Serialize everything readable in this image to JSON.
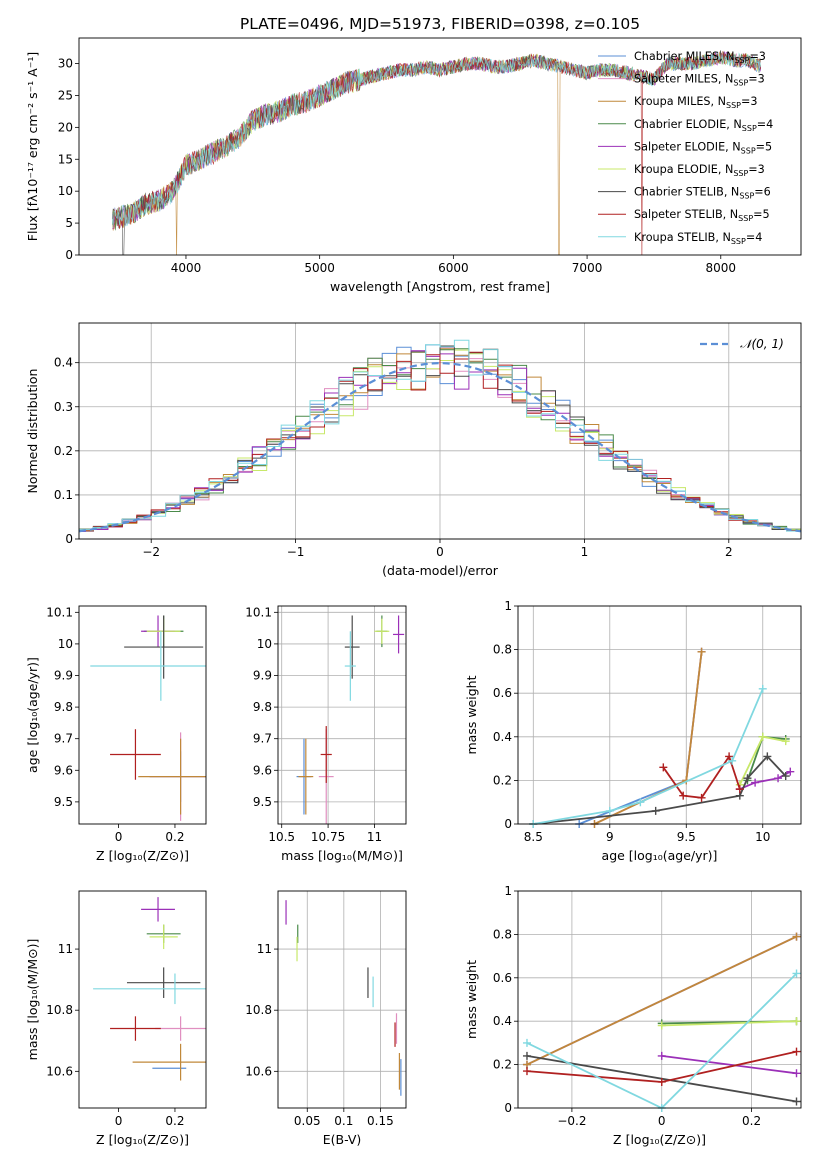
{
  "figure_title": "PLATE=0496, MJD=51973, FIBERID=0398, z=0.105",
  "colors": {
    "Chabrier MILES": "#5b8fd6",
    "Salpeter MILES": "#e08fc0",
    "Kroupa MILES": "#c0883a",
    "Chabrier ELODIE": "#4a8a4a",
    "Salpeter ELODIE": "#9b30b8",
    "Kroupa ELODIE": "#c8e86a",
    "Chabrier STELIB": "#4a4a4a",
    "Salpeter STELIB": "#b02020",
    "Kroupa STELIB": "#80d8e0",
    "normal": "#5b8fd6",
    "orange": "#d97a30"
  },
  "legend_entries": [
    {
      "name": "Chabrier MILES",
      "suffix": "3"
    },
    {
      "name": "Salpeter MILES",
      "suffix": "3"
    },
    {
      "name": "Kroupa MILES",
      "suffix": "3"
    },
    {
      "name": "Chabrier ELODIE",
      "suffix": "4"
    },
    {
      "name": "Salpeter ELODIE",
      "suffix": "5"
    },
    {
      "name": "Kroupa ELODIE",
      "suffix": "3"
    },
    {
      "name": "Chabrier STELIB",
      "suffix": "6"
    },
    {
      "name": "Salpeter STELIB",
      "suffix": "5"
    },
    {
      "name": "Kroupa STELIB",
      "suffix": "4"
    }
  ],
  "chart_data": [
    {
      "type": "line",
      "id": "spectrum",
      "xlabel": "wavelength [Angstrom, rest frame]",
      "ylabel": "Flux [fλ10⁻¹⁷ erg cm⁻² s⁻¹ A⁻¹]",
      "xlim": [
        3200,
        8600
      ],
      "ylim": [
        0,
        34
      ],
      "xticks": [
        4000,
        5000,
        6000,
        7000,
        8000
      ],
      "yticks": [
        0,
        5,
        10,
        15,
        20,
        25,
        30
      ],
      "continuum": [
        [
          3450,
          5.5
        ],
        [
          3600,
          6.5
        ],
        [
          3700,
          8
        ],
        [
          3800,
          8.5
        ],
        [
          3900,
          10
        ],
        [
          4000,
          14
        ],
        [
          4100,
          15
        ],
        [
          4200,
          16
        ],
        [
          4300,
          17
        ],
        [
          4400,
          18.5
        ],
        [
          4500,
          21
        ],
        [
          4600,
          22
        ],
        [
          4700,
          22.5
        ],
        [
          4800,
          23.5
        ],
        [
          4900,
          24
        ],
        [
          5000,
          25
        ],
        [
          5100,
          26
        ],
        [
          5200,
          27
        ],
        [
          5300,
          27.5
        ],
        [
          5400,
          28
        ],
        [
          5500,
          28.5
        ],
        [
          5600,
          29
        ],
        [
          5700,
          29
        ],
        [
          5800,
          29.5
        ],
        [
          5900,
          29
        ],
        [
          6000,
          29.5
        ],
        [
          6100,
          30
        ],
        [
          6200,
          30
        ],
        [
          6300,
          29.5
        ],
        [
          6400,
          29.5
        ],
        [
          6500,
          30
        ],
        [
          6600,
          30.5
        ],
        [
          6700,
          30
        ],
        [
          6800,
          29.5
        ],
        [
          6900,
          29
        ],
        [
          7000,
          28.5
        ],
        [
          7100,
          29
        ],
        [
          7200,
          29
        ],
        [
          7300,
          28.5
        ],
        [
          7400,
          28
        ],
        [
          7500,
          27.5
        ],
        [
          7600,
          30
        ],
        [
          7700,
          30
        ],
        [
          7800,
          30
        ],
        [
          7900,
          30.5
        ],
        [
          8000,
          31
        ],
        [
          8100,
          30.5
        ],
        [
          8200,
          30.5
        ],
        [
          8300,
          29.5
        ]
      ],
      "dips": [
        {
          "x": 3530,
          "series": "Chabrier STELIB"
        },
        {
          "x": 3930,
          "series": "Kroupa MILES"
        },
        {
          "x": 6790,
          "series": "Kroupa MILES"
        },
        {
          "x": 7410,
          "series": "Salpeter STELIB"
        }
      ]
    },
    {
      "type": "histogram",
      "id": "residuals",
      "xlabel": "(data-model)/error",
      "ylabel": "Normed distribution",
      "xlim": [
        -2.5,
        2.5
      ],
      "ylim": [
        0,
        0.49
      ],
      "xticks": [
        -2,
        -1,
        0,
        1,
        2
      ],
      "yticks": [
        0.0,
        0.1,
        0.2,
        0.3,
        0.4
      ],
      "bin_width": 0.1,
      "legend": "𝒩(0, 1)",
      "normal": {
        "mean": 0,
        "sigma": 1
      }
    },
    {
      "type": "errorbar",
      "id": "age_vs_Z",
      "xlabel": "Z [log₁₀(Z/Z⊙)]",
      "ylabel": "age  [log₁₀(age/yr)]",
      "xlim": [
        -0.14,
        0.31
      ],
      "ylim": [
        9.43,
        10.12
      ],
      "xticks": [
        0.0,
        0.2
      ],
      "yticks": [
        9.5,
        9.6,
        9.7,
        9.8,
        9.9,
        10.0,
        10.1
      ],
      "points": [
        {
          "series": "Chabrier MILES",
          "x": 0.22,
          "y": 9.58,
          "xerr": 0.11,
          "yerr": 0.08
        },
        {
          "series": "Salpeter MILES",
          "x": 0.22,
          "y": 9.58,
          "xerr": 0.11,
          "yerr": 0.14
        },
        {
          "series": "Kroupa MILES",
          "x": 0.22,
          "y": 9.58,
          "xerr": 0.15,
          "yerr": 0.12
        },
        {
          "series": "Chabrier ELODIE",
          "x": 0.16,
          "y": 10.04,
          "xerr": 0.07,
          "yerr": 0.05
        },
        {
          "series": "Salpeter ELODIE",
          "x": 0.14,
          "y": 10.04,
          "xerr": 0.06,
          "yerr": 0.05
        },
        {
          "series": "Kroupa ELODIE",
          "x": 0.16,
          "y": 10.04,
          "xerr": 0.06,
          "yerr": 0.04
        },
        {
          "series": "Chabrier STELIB",
          "x": 0.16,
          "y": 9.99,
          "xerr": 0.14,
          "yerr": 0.1
        },
        {
          "series": "Salpeter STELIB",
          "x": 0.06,
          "y": 9.65,
          "xerr": 0.09,
          "yerr": 0.08
        },
        {
          "series": "Kroupa STELIB",
          "x": 0.15,
          "y": 9.93,
          "xerr": 0.25,
          "yerr": 0.11
        }
      ]
    },
    {
      "type": "errorbar",
      "id": "age_vs_mass",
      "xlabel": "mass [log₁₀(M/M⊙)]",
      "ylabel": "",
      "xlim": [
        10.48,
        11.17
      ],
      "ylim": [
        9.43,
        10.12
      ],
      "xticks": [
        10.5,
        10.75,
        11.0
      ],
      "yticks": [
        9.5,
        9.6,
        9.7,
        9.8,
        9.9,
        10.0,
        10.1
      ],
      "points": [
        {
          "series": "Chabrier MILES",
          "x": 10.62,
          "y": 9.58,
          "xerr": 0.04,
          "yerr": 0.12
        },
        {
          "series": "Salpeter MILES",
          "x": 10.74,
          "y": 9.58,
          "xerr": 0.04,
          "yerr": 0.15
        },
        {
          "series": "Kroupa MILES",
          "x": 10.63,
          "y": 9.58,
          "xerr": 0.04,
          "yerr": 0.12
        },
        {
          "series": "Chabrier ELODIE",
          "x": 11.04,
          "y": 10.04,
          "xerr": 0.03,
          "yerr": 0.05
        },
        {
          "series": "Salpeter ELODIE",
          "x": 11.13,
          "y": 10.03,
          "xerr": 0.03,
          "yerr": 0.06
        },
        {
          "series": "Kroupa ELODIE",
          "x": 11.04,
          "y": 10.04,
          "xerr": 0.04,
          "yerr": 0.04
        },
        {
          "series": "Chabrier STELIB",
          "x": 10.88,
          "y": 9.99,
          "xerr": 0.04,
          "yerr": 0.1
        },
        {
          "series": "Salpeter STELIB",
          "x": 10.74,
          "y": 9.65,
          "xerr": 0.03,
          "yerr": 0.09
        },
        {
          "series": "Kroupa STELIB",
          "x": 10.87,
          "y": 9.93,
          "xerr": 0.03,
          "yerr": 0.11
        }
      ]
    },
    {
      "type": "line",
      "id": "weight_vs_age",
      "xlabel": "age  [log₁₀(age/yr)]",
      "ylabel": "mass weight",
      "xlim": [
        8.4,
        10.25
      ],
      "ylim": [
        0,
        1.0
      ],
      "xticks": [
        8.5,
        9.0,
        9.5,
        10.0
      ],
      "yticks": [
        0.0,
        0.2,
        0.4,
        0.6,
        0.8,
        1.0
      ],
      "series": [
        {
          "name": "Chabrier MILES",
          "points": [
            [
              8.8,
              0.0
            ],
            [
              9.5,
              0.2
            ],
            [
              9.6,
              0.79
            ]
          ]
        },
        {
          "name": "Salpeter MILES",
          "points": [
            [
              8.9,
              0.0
            ],
            [
              9.5,
              0.2
            ],
            [
              9.6,
              0.79
            ]
          ]
        },
        {
          "name": "Kroupa MILES",
          "points": [
            [
              8.9,
              0.0
            ],
            [
              9.5,
              0.2
            ],
            [
              9.6,
              0.79
            ]
          ]
        },
        {
          "name": "Chabrier ELODIE",
          "points": [
            [
              9.9,
              0.2
            ],
            [
              10.0,
              0.4
            ],
            [
              10.15,
              0.39
            ]
          ]
        },
        {
          "name": "Salpeter ELODIE",
          "points": [
            [
              9.85,
              0.16
            ],
            [
              9.95,
              0.19
            ],
            [
              10.1,
              0.21
            ],
            [
              10.18,
              0.24
            ]
          ]
        },
        {
          "name": "Kroupa ELODIE",
          "points": [
            [
              9.85,
              0.18
            ],
            [
              10.0,
              0.4
            ],
            [
              10.15,
              0.38
            ]
          ]
        },
        {
          "name": "Chabrier STELIB",
          "points": [
            [
              8.5,
              0.0
            ],
            [
              9.3,
              0.06
            ],
            [
              9.85,
              0.13
            ],
            [
              9.9,
              0.21
            ],
            [
              10.03,
              0.31
            ],
            [
              10.15,
              0.22
            ]
          ]
        },
        {
          "name": "Salpeter STELIB",
          "points": [
            [
              9.35,
              0.26
            ],
            [
              9.48,
              0.13
            ],
            [
              9.6,
              0.12
            ],
            [
              9.78,
              0.31
            ],
            [
              9.85,
              0.16
            ]
          ]
        },
        {
          "name": "Kroupa STELIB",
          "points": [
            [
              8.5,
              0.0
            ],
            [
              9.0,
              0.06
            ],
            [
              9.2,
              0.1
            ],
            [
              9.8,
              0.29
            ],
            [
              10.0,
              0.62
            ]
          ]
        }
      ]
    },
    {
      "type": "errorbar",
      "id": "mass_vs_Z",
      "xlabel": "Z [log₁₀(Z/Z⊙)]",
      "ylabel": "mass [log₁₀(M/M⊙)]",
      "xlim": [
        -0.14,
        0.31
      ],
      "ylim": [
        10.48,
        11.19
      ],
      "xticks": [
        0.0,
        0.2
      ],
      "yticks": [
        10.6,
        10.8,
        11.0
      ],
      "points": [
        {
          "series": "Chabrier MILES",
          "x": 0.18,
          "y": 10.61,
          "xerr": 0.06,
          "yerr": 0.0
        },
        {
          "series": "Salpeter MILES",
          "x": 0.22,
          "y": 10.74,
          "xerr": 0.09,
          "yerr": 0.04
        },
        {
          "series": "Kroupa MILES",
          "x": 0.22,
          "y": 10.63,
          "xerr": 0.17,
          "yerr": 0.06
        },
        {
          "series": "Chabrier ELODIE",
          "x": 0.16,
          "y": 11.05,
          "xerr": 0.06,
          "yerr": 0.03
        },
        {
          "series": "Salpeter ELODIE",
          "x": 0.14,
          "y": 11.13,
          "xerr": 0.06,
          "yerr": 0.04
        },
        {
          "series": "Kroupa ELODIE",
          "x": 0.16,
          "y": 11.04,
          "xerr": 0.05,
          "yerr": 0.04
        },
        {
          "series": "Chabrier STELIB",
          "x": 0.16,
          "y": 10.89,
          "xerr": 0.13,
          "yerr": 0.05
        },
        {
          "series": "Salpeter STELIB",
          "x": 0.06,
          "y": 10.74,
          "xerr": 0.09,
          "yerr": 0.04
        },
        {
          "series": "Kroupa STELIB",
          "x": 0.2,
          "y": 10.87,
          "xerr": 0.29,
          "yerr": 0.05
        }
      ]
    },
    {
      "type": "errorbar",
      "id": "mass_vs_ebv",
      "xlabel": "E(B-V)",
      "ylabel": "",
      "xlim": [
        0.01,
        0.185
      ],
      "ylim": [
        10.48,
        11.19
      ],
      "xticks": [
        0.05,
        0.1,
        0.15
      ],
      "yticks": [
        10.6,
        10.8,
        11.0
      ],
      "points": [
        {
          "series": "Chabrier MILES",
          "x": 0.178,
          "y": 10.58,
          "xerr": 0,
          "yerr": 0.06
        },
        {
          "series": "Salpeter MILES",
          "x": 0.172,
          "y": 10.74,
          "xerr": 0,
          "yerr": 0.05
        },
        {
          "series": "Kroupa MILES",
          "x": 0.176,
          "y": 10.6,
          "xerr": 0,
          "yerr": 0.06
        },
        {
          "series": "Chabrier ELODIE",
          "x": 0.037,
          "y": 11.05,
          "xerr": 0,
          "yerr": 0.03
        },
        {
          "series": "Salpeter ELODIE",
          "x": 0.021,
          "y": 11.12,
          "xerr": 0,
          "yerr": 0.04
        },
        {
          "series": "Kroupa ELODIE",
          "x": 0.036,
          "y": 11.0,
          "xerr": 0,
          "yerr": 0.04
        },
        {
          "series": "Chabrier STELIB",
          "x": 0.133,
          "y": 10.89,
          "xerr": 0,
          "yerr": 0.05
        },
        {
          "series": "Salpeter STELIB",
          "x": 0.17,
          "y": 10.72,
          "xerr": 0,
          "yerr": 0.04
        },
        {
          "series": "Kroupa STELIB",
          "x": 0.14,
          "y": 10.86,
          "xerr": 0,
          "yerr": 0.05
        }
      ]
    },
    {
      "type": "line",
      "id": "weight_vs_Z",
      "xlabel": "Z [log₁₀(Z/Z⊙)]",
      "ylabel": "mass weight",
      "xlim": [
        -0.32,
        0.31
      ],
      "ylim": [
        0,
        1.0
      ],
      "xticks": [
        -0.2,
        0.0,
        0.2
      ],
      "yticks": [
        0.0,
        0.2,
        0.4,
        0.6,
        0.8,
        1.0
      ],
      "series": [
        {
          "name": "Chabrier MILES",
          "points": [
            [
              -0.3,
              0.2
            ],
            [
              0.3,
              0.79
            ]
          ]
        },
        {
          "name": "Salpeter MILES",
          "points": [
            [
              -0.3,
              0.2
            ],
            [
              0.3,
              0.79
            ]
          ]
        },
        {
          "name": "Kroupa MILES",
          "points": [
            [
              -0.3,
              0.2
            ],
            [
              0.3,
              0.79
            ]
          ]
        },
        {
          "name": "Chabrier ELODIE",
          "points": [
            [
              0.0,
              0.39
            ],
            [
              0.3,
              0.4
            ]
          ]
        },
        {
          "name": "Salpeter ELODIE",
          "points": [
            [
              0.0,
              0.24
            ],
            [
              0.3,
              0.16
            ]
          ]
        },
        {
          "name": "Kroupa ELODIE",
          "points": [
            [
              0.0,
              0.38
            ],
            [
              0.3,
              0.4
            ]
          ]
        },
        {
          "name": "Chabrier STELIB",
          "points": [
            [
              -0.3,
              0.24
            ],
            [
              0.3,
              0.03
            ]
          ]
        },
        {
          "name": "Salpeter STELIB",
          "points": [
            [
              -0.3,
              0.17
            ],
            [
              0.0,
              0.12
            ],
            [
              0.3,
              0.26
            ]
          ]
        },
        {
          "name": "Kroupa STELIB",
          "points": [
            [
              -0.3,
              0.3
            ],
            [
              0.0,
              0.0
            ],
            [
              0.3,
              0.62
            ]
          ]
        }
      ]
    }
  ]
}
